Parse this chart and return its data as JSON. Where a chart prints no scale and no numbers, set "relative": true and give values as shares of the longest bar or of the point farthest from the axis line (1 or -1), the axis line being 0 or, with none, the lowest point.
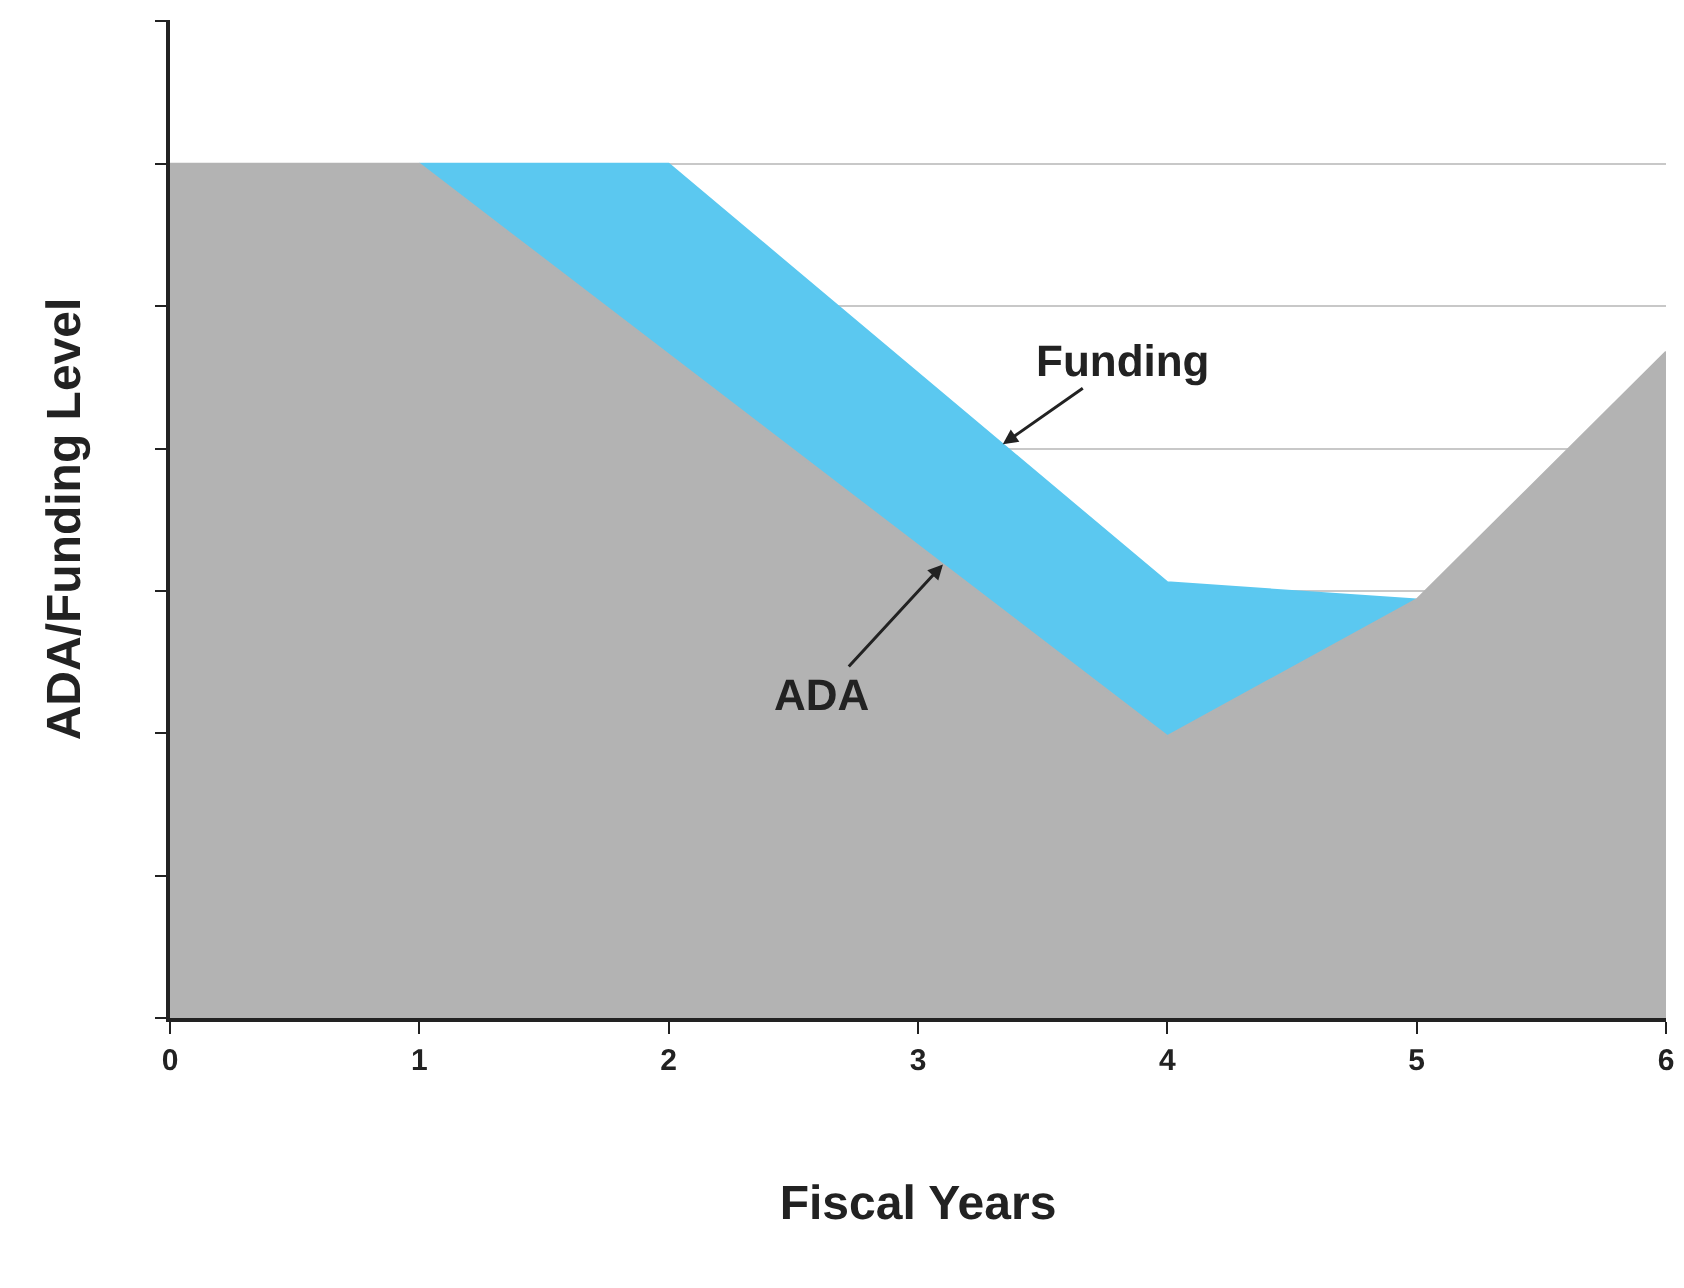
{
  "chart_data": {
    "type": "area",
    "relative": true,
    "xlabel": "Fiscal Years",
    "ylabel": "ADA/Funding Level",
    "xlim": [
      0,
      6
    ],
    "xticks": [
      0,
      1,
      2,
      3,
      4,
      5,
      6
    ],
    "grid": "y",
    "legend": false,
    "series": [
      {
        "name": "Funding",
        "color": "#5bc8f0",
        "x": [
          1,
          2,
          4,
          5
        ],
        "values": [
          1,
          1,
          0.51,
          0.49
        ]
      },
      {
        "name": "ADA",
        "color": "#b3b3b3",
        "x": [
          0,
          1,
          4,
          5,
          6
        ],
        "values": [
          1,
          1,
          0.33,
          0.49,
          0.78
        ]
      }
    ]
  }
}
